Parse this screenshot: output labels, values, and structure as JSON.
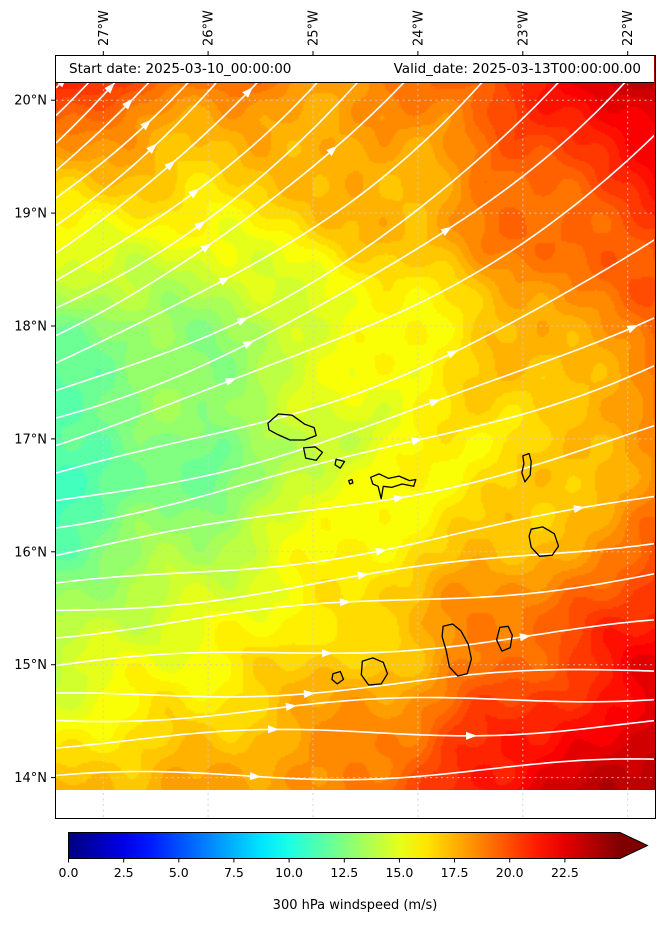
{
  "chart_data": {
    "type": "heatmap",
    "subtype": "filled contour windspeed map with white streamlines and coastlines",
    "title_left": "Start date: 2025-03-10_00:00:00",
    "title_right": "Valid_date: 2025-03-13T00:00:00.00",
    "lon_ticks": [
      "27°W",
      "26°W",
      "25°W",
      "24°W",
      "23°W",
      "22°W"
    ],
    "lon_tick_values": [
      -27,
      -26,
      -25,
      -24,
      -23,
      -22
    ],
    "lat_ticks": [
      "20°N",
      "19°N",
      "18°N",
      "17°N",
      "16°N",
      "15°N",
      "14°N"
    ],
    "lat_tick_values": [
      20,
      19,
      18,
      17,
      16,
      15,
      14
    ],
    "lon_range": [
      -27.46,
      -21.74
    ],
    "lat_range": [
      13.89,
      20.4
    ],
    "grid_lons": [
      -27.46,
      -26.0,
      -25.0,
      -24.0,
      -23.0,
      -21.74
    ],
    "grid_lats": [
      20.4,
      19.0,
      18.0,
      17.0,
      16.0,
      15.0,
      13.89
    ],
    "windspeed_grid": [
      [
        21.5,
        19.5,
        19.0,
        19.5,
        21.5,
        23.5
      ],
      [
        16.5,
        16.0,
        16.5,
        17.5,
        19.0,
        21.0
      ],
      [
        13.0,
        13.5,
        14.5,
        16.0,
        17.5,
        19.5
      ],
      [
        11.5,
        12.5,
        14.0,
        15.5,
        16.5,
        18.0
      ],
      [
        12.0,
        13.5,
        15.0,
        16.5,
        17.5,
        19.5
      ],
      [
        14.5,
        15.5,
        16.5,
        18.0,
        20.0,
        22.0
      ],
      [
        17.0,
        17.5,
        18.5,
        19.5,
        22.0,
        24.0
      ]
    ],
    "colorbar": {
      "label": "300 hPa windspeed (m/s)",
      "ticks": [
        "0.0",
        "2.5",
        "5.0",
        "7.5",
        "10.0",
        "12.5",
        "15.0",
        "17.5",
        "20.0",
        "22.5"
      ],
      "tick_values": [
        0,
        2.5,
        5,
        7.5,
        10,
        12.5,
        15,
        17.5,
        20,
        22.5
      ],
      "vmin": 0,
      "vmax": 25,
      "colormap": "jet",
      "extend": "max"
    },
    "streamlines": {
      "color": "#ffffff",
      "count": 26,
      "direction": "west-to-east, curving northeast aloft"
    },
    "coastlines": [
      {
        "name": "santo-antao",
        "points": [
          [
            -25.43,
            17.14
          ],
          [
            -25.33,
            17.22
          ],
          [
            -25.2,
            17.21
          ],
          [
            -25.08,
            17.13
          ],
          [
            -24.99,
            17.1
          ],
          [
            -24.97,
            17.03
          ],
          [
            -25.08,
            16.99
          ],
          [
            -25.22,
            16.99
          ],
          [
            -25.34,
            17.04
          ],
          [
            -25.42,
            17.08
          ]
        ]
      },
      {
        "name": "sao-vicente",
        "points": [
          [
            -25.09,
            16.92
          ],
          [
            -24.98,
            16.93
          ],
          [
            -24.91,
            16.88
          ],
          [
            -24.97,
            16.81
          ],
          [
            -25.07,
            16.83
          ]
        ]
      },
      {
        "name": "santa-luzia",
        "points": [
          [
            -24.78,
            16.82
          ],
          [
            -24.7,
            16.8
          ],
          [
            -24.74,
            16.74
          ],
          [
            -24.79,
            16.77
          ]
        ]
      },
      {
        "name": "branco-raso",
        "points": [
          [
            -24.66,
            16.63
          ],
          [
            -24.63,
            16.64
          ],
          [
            -24.62,
            16.61
          ],
          [
            -24.65,
            16.6
          ]
        ]
      },
      {
        "name": "sao-nicolau",
        "points": [
          [
            -24.45,
            16.66
          ],
          [
            -24.37,
            16.69
          ],
          [
            -24.28,
            16.65
          ],
          [
            -24.18,
            16.67
          ],
          [
            -24.08,
            16.63
          ],
          [
            -24.02,
            16.64
          ],
          [
            -24.04,
            16.58
          ],
          [
            -24.15,
            16.6
          ],
          [
            -24.25,
            16.57
          ],
          [
            -24.33,
            16.58
          ],
          [
            -24.35,
            16.47
          ],
          [
            -24.38,
            16.58
          ],
          [
            -24.43,
            16.6
          ]
        ]
      },
      {
        "name": "sal",
        "points": [
          [
            -23.0,
            16.85
          ],
          [
            -22.94,
            16.87
          ],
          [
            -22.92,
            16.8
          ],
          [
            -22.93,
            16.68
          ],
          [
            -22.98,
            16.62
          ],
          [
            -23.01,
            16.7
          ],
          [
            -22.99,
            16.78
          ]
        ]
      },
      {
        "name": "boa-vista",
        "points": [
          [
            -22.92,
            16.2
          ],
          [
            -22.81,
            16.22
          ],
          [
            -22.7,
            16.16
          ],
          [
            -22.66,
            16.05
          ],
          [
            -22.72,
            15.97
          ],
          [
            -22.84,
            15.96
          ],
          [
            -22.92,
            16.04
          ],
          [
            -22.94,
            16.14
          ]
        ]
      },
      {
        "name": "maio",
        "points": [
          [
            -23.22,
            15.33
          ],
          [
            -23.14,
            15.34
          ],
          [
            -23.1,
            15.26
          ],
          [
            -23.12,
            15.15
          ],
          [
            -23.2,
            15.12
          ],
          [
            -23.25,
            15.22
          ]
        ]
      },
      {
        "name": "santiago",
        "points": [
          [
            -23.76,
            15.34
          ],
          [
            -23.67,
            15.36
          ],
          [
            -23.59,
            15.3
          ],
          [
            -23.52,
            15.18
          ],
          [
            -23.49,
            15.05
          ],
          [
            -23.53,
            14.92
          ],
          [
            -23.62,
            14.9
          ],
          [
            -23.7,
            14.98
          ],
          [
            -23.73,
            15.12
          ],
          [
            -23.77,
            15.25
          ]
        ]
      },
      {
        "name": "fogo",
        "points": [
          [
            -24.53,
            15.03
          ],
          [
            -24.43,
            15.06
          ],
          [
            -24.33,
            15.02
          ],
          [
            -24.29,
            14.92
          ],
          [
            -24.35,
            14.83
          ],
          [
            -24.47,
            14.82
          ],
          [
            -24.54,
            14.91
          ]
        ]
      },
      {
        "name": "brava",
        "points": [
          [
            -24.81,
            14.92
          ],
          [
            -24.74,
            14.94
          ],
          [
            -24.71,
            14.87
          ],
          [
            -24.77,
            14.83
          ],
          [
            -24.82,
            14.87
          ]
        ]
      }
    ]
  }
}
